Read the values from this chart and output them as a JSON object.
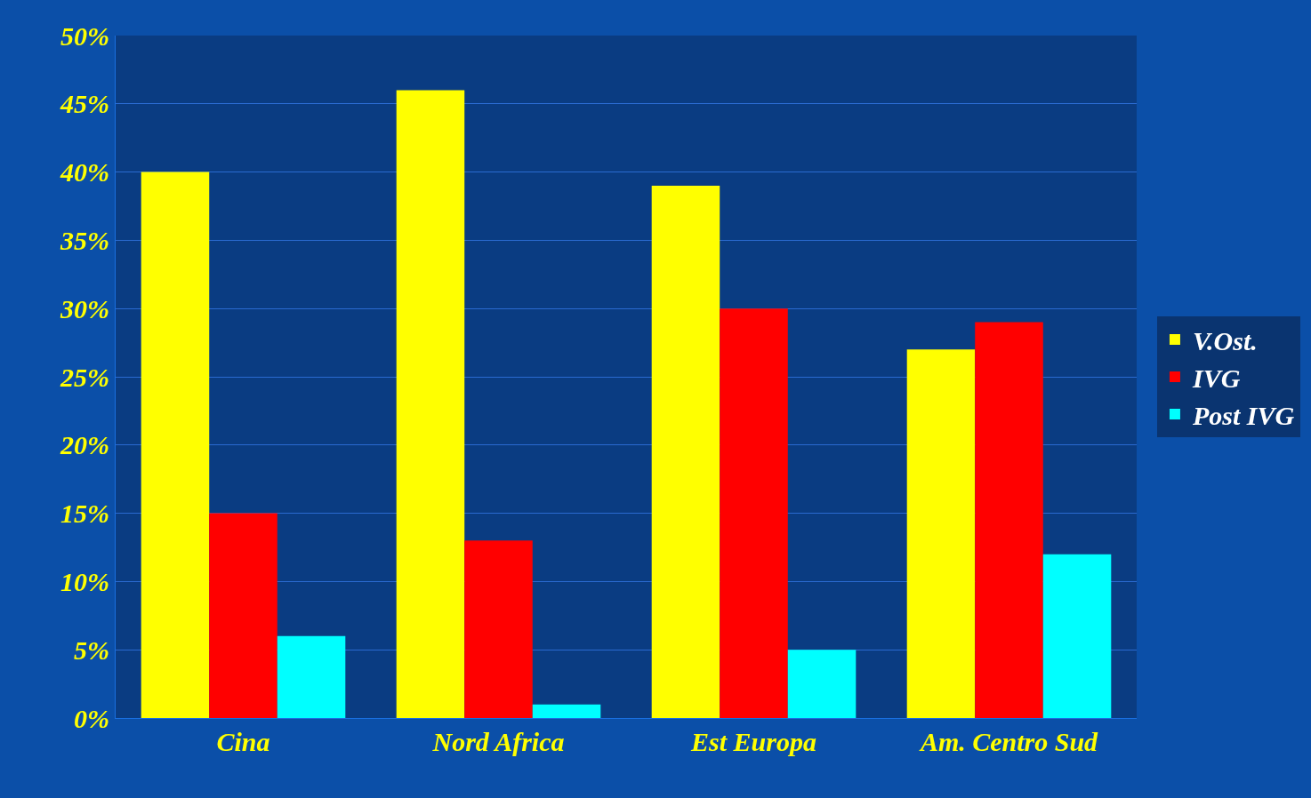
{
  "chart_data": {
    "type": "bar",
    "categories": [
      "Cina",
      "Nord Africa",
      "Est Europa",
      "Am. Centro Sud"
    ],
    "series": [
      {
        "name": "V.Ost.",
        "color": "#ffff00",
        "values": [
          40,
          46,
          39,
          27
        ]
      },
      {
        "name": "IVG",
        "color": "#ff0000",
        "values": [
          15,
          13,
          30,
          29
        ]
      },
      {
        "name": "Post IVG",
        "color": "#00ffff",
        "values": [
          6,
          1,
          5,
          12
        ]
      }
    ],
    "ylim": [
      0,
      50
    ],
    "yticks": [
      {
        "value": 0,
        "label": "0%"
      },
      {
        "value": 5,
        "label": "5%"
      },
      {
        "value": 10,
        "label": "10%"
      },
      {
        "value": 15,
        "label": "15%"
      },
      {
        "value": 20,
        "label": "20%"
      },
      {
        "value": 25,
        "label": "25%"
      },
      {
        "value": 30,
        "label": "30%"
      },
      {
        "value": 35,
        "label": "35%"
      },
      {
        "value": 40,
        "label": "40%"
      },
      {
        "value": 45,
        "label": "45%"
      },
      {
        "value": 50,
        "label": "50%"
      }
    ],
    "grid": "y",
    "legend": "right"
  }
}
